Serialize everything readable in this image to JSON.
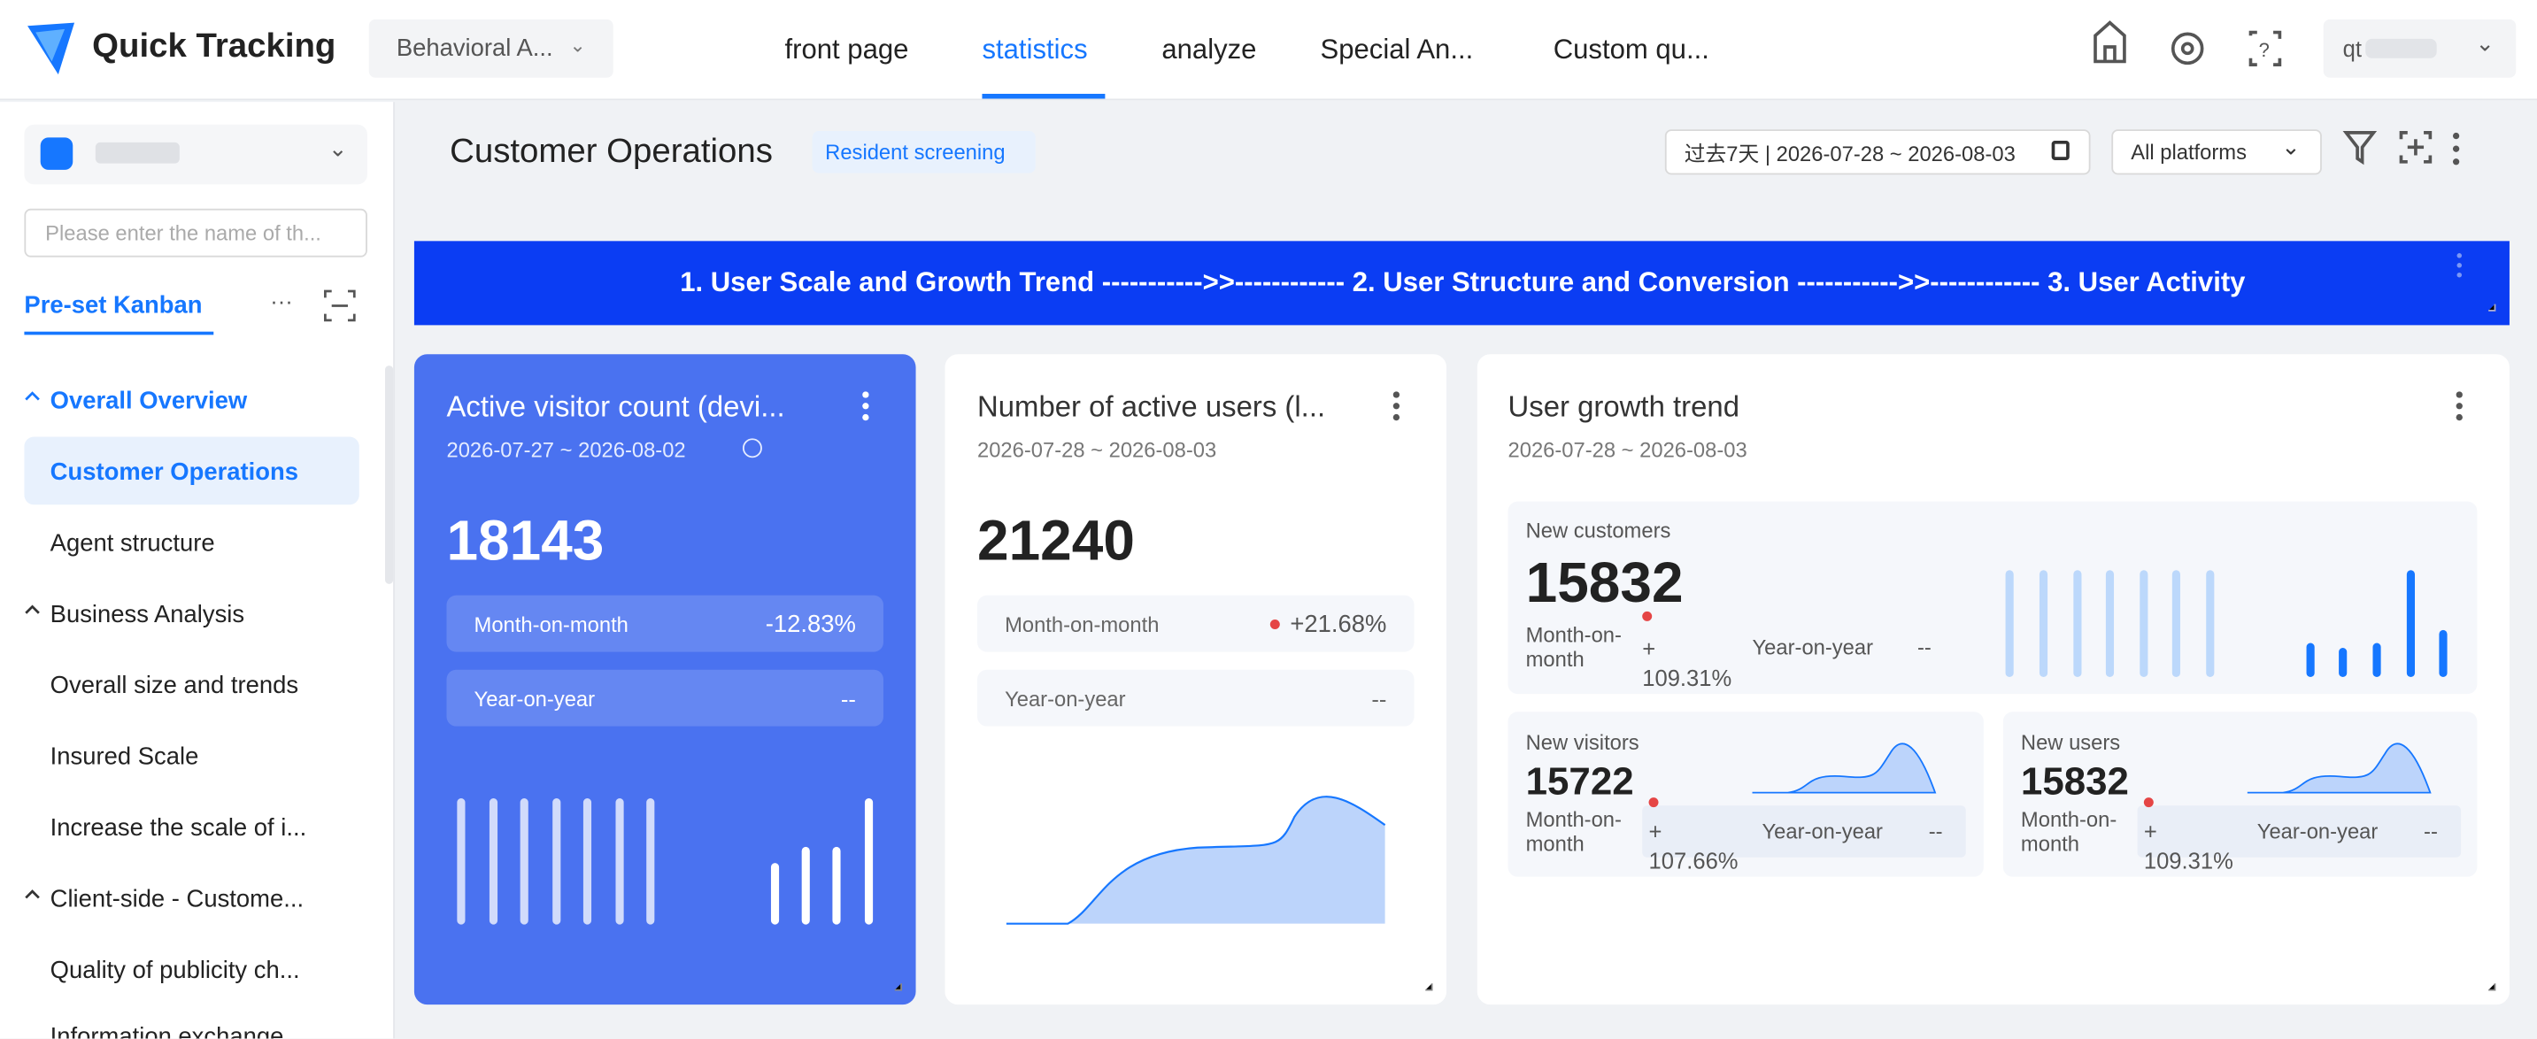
{
  "header": {
    "logo": "Quick Tracking",
    "workspace": "Behavioral A...",
    "nav": [
      "front page",
      "statistics",
      "analyze",
      "Special An...",
      "Custom qu..."
    ],
    "user": "qt"
  },
  "sidebar": {
    "search_placeholder": "Please enter the name of th...",
    "tab": "Pre-set Kanban",
    "items": [
      "Overall Overview",
      "Customer Operations",
      "Agent structure",
      "Business Analysis",
      "Overall size and trends",
      "Insured Scale",
      "Increase the scale of i...",
      "Client-side - Custome...",
      "Quality of publicity ch...",
      "Information exchange"
    ]
  },
  "toolbar": {
    "title": "Customer Operations",
    "tag": "Resident screening",
    "date_range": "过去7天 | 2026-07-28 ~ 2026-08-03",
    "platform": "All platforms"
  },
  "banner": "1. User Scale and Growth Trend ----------->>------------ 2. User Structure and Conversion ----------->>------------ 3. User Activity",
  "cards": [
    {
      "title": "Active visitor count (devi...",
      "date": "2026-07-27 ~ 2026-08-02",
      "value": "18143",
      "metrics": [
        {
          "label": "Month-on-month",
          "value": "-12.83%"
        },
        {
          "label": "Year-on-year",
          "value": "--"
        }
      ]
    },
    {
      "title": "Number of active users (l...",
      "date": "2026-07-28 ~ 2026-08-03",
      "value": "21240",
      "metrics": [
        {
          "label": "Month-on-month",
          "value": "+21.68%"
        },
        {
          "label": "Year-on-year",
          "value": "--"
        }
      ]
    }
  ],
  "growth": {
    "title": "User growth trend",
    "date": "2026-07-28 ~ 2026-08-03",
    "blocks": [
      {
        "label": "New customers",
        "value": "15832",
        "mom_label": "Month-on-month",
        "mom_value": "+ 109.31%",
        "yoy_label": "Year-on-year",
        "yoy_value": "--"
      },
      {
        "label": "New visitors",
        "value": "15722",
        "mom_label": "Month-on-month",
        "mom_value": "+ 107.66%",
        "yoy_label": "Year-on-year",
        "yoy_value": "--"
      },
      {
        "label": "New users",
        "value": "15832",
        "mom_label": "Month-on-month",
        "mom_value": "+ 109.31%",
        "yoy_label": "Year-on-year",
        "yoy_value": "--"
      }
    ]
  }
}
